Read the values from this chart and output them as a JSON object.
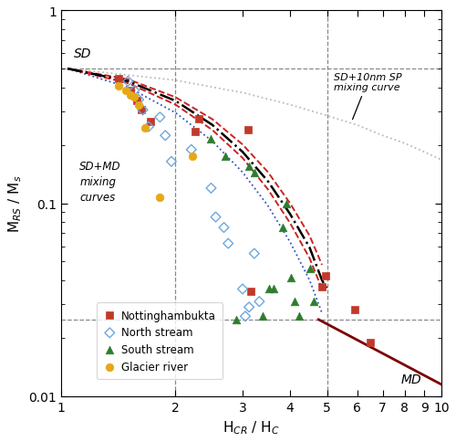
{
  "xlabel": "H$_{CR}$ / H$_C$",
  "ylabel": "M$_{RS}$ / M$_s$",
  "xlim": [
    1,
    10
  ],
  "ylim": [
    0.01,
    1
  ],
  "hlines": [
    0.5,
    0.025
  ],
  "vlines": [
    2.0,
    5.0
  ],
  "nottinghambukta_x": [
    1.42,
    1.52,
    1.58,
    1.63,
    1.72,
    2.25,
    2.3,
    3.1,
    3.15,
    4.85,
    4.95,
    5.9,
    6.5
  ],
  "nottinghambukta_y": [
    0.445,
    0.385,
    0.34,
    0.305,
    0.265,
    0.235,
    0.275,
    0.24,
    0.035,
    0.037,
    0.042,
    0.028,
    0.019
  ],
  "north_stream_x": [
    1.5,
    1.56,
    1.6,
    1.64,
    1.7,
    1.82,
    1.88,
    1.95,
    2.2,
    2.48,
    2.55,
    2.68,
    2.75,
    3.0,
    3.05,
    3.12,
    3.22,
    3.32
  ],
  "north_stream_y": [
    0.43,
    0.385,
    0.345,
    0.305,
    0.25,
    0.28,
    0.225,
    0.165,
    0.19,
    0.12,
    0.085,
    0.075,
    0.062,
    0.036,
    0.026,
    0.029,
    0.055,
    0.031
  ],
  "south_stream_x": [
    2.48,
    2.7,
    2.88,
    3.12,
    3.22,
    3.38,
    3.52,
    3.62,
    3.82,
    3.92,
    4.02,
    4.12,
    4.22,
    4.52,
    4.62
  ],
  "south_stream_y": [
    0.215,
    0.175,
    0.025,
    0.155,
    0.145,
    0.026,
    0.036,
    0.036,
    0.075,
    0.1,
    0.041,
    0.031,
    0.026,
    0.046,
    0.031
  ],
  "glacier_river_x": [
    1.42,
    1.48,
    1.52,
    1.56,
    1.6,
    1.66,
    1.82,
    2.22
  ],
  "glacier_river_y": [
    0.405,
    0.385,
    0.365,
    0.355,
    0.325,
    0.245,
    0.108,
    0.175
  ],
  "nottinghambukta_color": "#c0392b",
  "north_stream_color": "#6fa8dc",
  "south_stream_color": "#2d7d2d",
  "glacier_river_color": "#e6a817",
  "sd_sp_dotted_x": [
    1.04,
    2.0,
    3.0,
    4.0,
    5.0,
    6.0,
    7.0,
    8.0,
    9.0,
    10.0
  ],
  "sd_sp_dotted_y": [
    0.5,
    0.435,
    0.375,
    0.325,
    0.285,
    0.255,
    0.225,
    0.205,
    0.185,
    0.168
  ],
  "sd_md_blue_x": [
    1.04,
    1.5,
    2.0,
    2.5,
    3.0,
    3.5,
    4.0,
    4.5,
    4.85
  ],
  "sd_md_blue_y": [
    0.5,
    0.4,
    0.295,
    0.21,
    0.145,
    0.097,
    0.063,
    0.04,
    0.027
  ],
  "sd_md_red1_x": [
    1.04,
    1.5,
    2.0,
    2.5,
    3.0,
    3.5,
    4.0,
    4.5,
    4.85
  ],
  "sd_md_red1_y": [
    0.5,
    0.42,
    0.325,
    0.24,
    0.172,
    0.118,
    0.079,
    0.052,
    0.036
  ],
  "sd_md_red2_x": [
    1.04,
    1.5,
    2.0,
    2.5,
    3.0,
    3.5,
    4.0,
    4.5,
    4.85
  ],
  "sd_md_red2_y": [
    0.5,
    0.44,
    0.355,
    0.273,
    0.202,
    0.145,
    0.1,
    0.068,
    0.048
  ],
  "dash_dot_x": [
    1.04,
    1.5,
    2.0,
    2.5,
    3.0,
    3.5,
    4.0,
    4.5,
    4.85,
    5.0
  ],
  "dash_dot_y": [
    0.5,
    0.43,
    0.34,
    0.255,
    0.185,
    0.13,
    0.088,
    0.059,
    0.04,
    0.036
  ],
  "md_line_x": [
    4.75,
    10.0
  ],
  "md_line_y": [
    0.025,
    0.0115
  ]
}
